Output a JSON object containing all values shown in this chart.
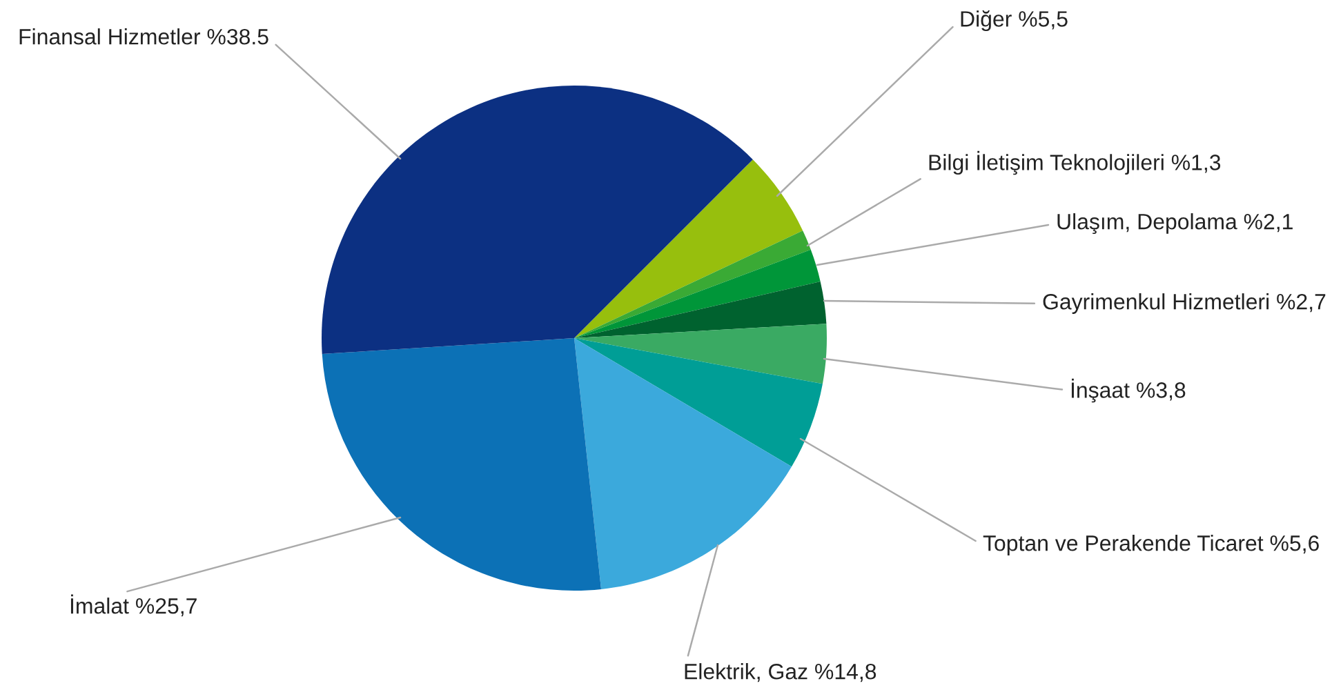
{
  "chart_data": {
    "type": "pie",
    "categories": [
      "Diğer",
      "Bilgi İletişim Teknolojileri",
      "Ulaşım, Depolama",
      "Gayrimenkul Hizmetleri",
      "İnşaat",
      "Toptan ve Perakende Ticaret",
      "Elektrik, Gaz",
      "İmalat",
      "Finansal Hizmetler"
    ],
    "values": [
      5.5,
      1.3,
      2.1,
      2.7,
      3.8,
      5.6,
      14.8,
      25.7,
      38.5
    ],
    "value_labels": [
      "%5,5",
      "%1,3",
      "%2,1",
      "%2,7",
      "%3,8",
      "%5,6",
      "%14,8",
      "%25,7",
      "%38.5"
    ],
    "colors": [
      "#97bf0d",
      "#3aaa35",
      "#009639",
      "#00622f",
      "#3aaa63",
      "#009e96",
      "#3ba9dc",
      "#0c71b6",
      "#0c3082"
    ],
    "legend": false
  }
}
